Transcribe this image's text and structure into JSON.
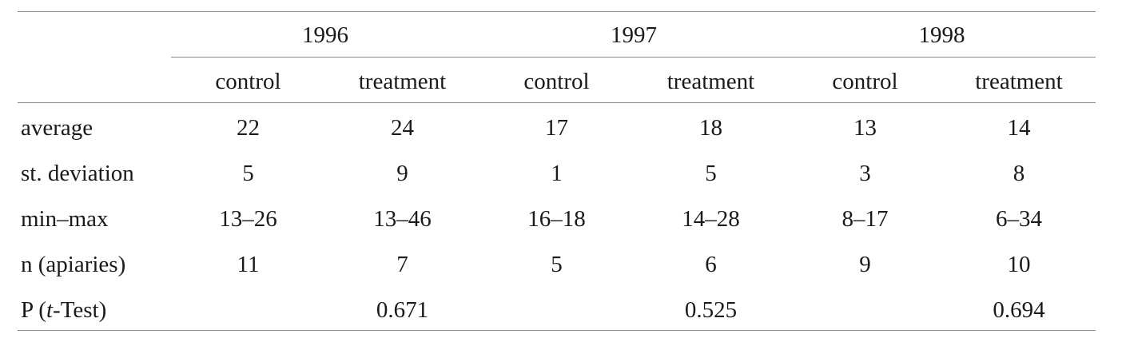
{
  "table": {
    "years": [
      "1996",
      "1997",
      "1998"
    ],
    "groups": [
      "control",
      "treatment",
      "control",
      "treatment",
      "control",
      "treatment"
    ],
    "rows": [
      {
        "label": "average",
        "values": [
          "22",
          "24",
          "17",
          "18",
          "13",
          "14"
        ]
      },
      {
        "label": "st. deviation",
        "values": [
          "5",
          "9",
          "1",
          "5",
          "3",
          "8"
        ]
      },
      {
        "label": "min–max",
        "values": [
          "13–26",
          "13–46",
          "16–18",
          "14–28",
          "8–17",
          "6–34"
        ]
      },
      {
        "label": "n (apiaries)",
        "values": [
          "11",
          "7",
          "5",
          "6",
          "9",
          "10"
        ]
      }
    ],
    "ptest": {
      "label_prefix": "P (",
      "label_italic": "t",
      "label_suffix": "-Test)",
      "values": [
        "0.671",
        "0.525",
        "0.694"
      ]
    }
  }
}
